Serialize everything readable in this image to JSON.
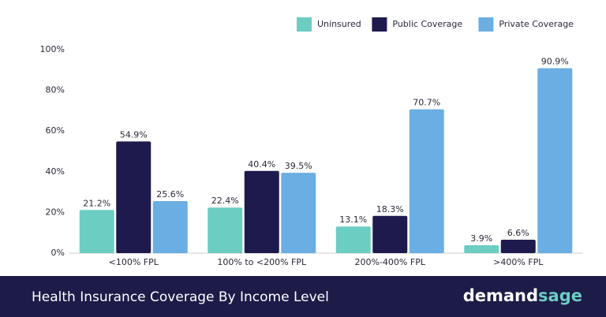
{
  "chart_data": {
    "type": "bar",
    "title": "Health Insurance Coverage By Income Level",
    "logo": [
      "demand",
      "sage"
    ],
    "categories": [
      "<100% FPL",
      "100% to <200% FPL",
      "200%-400% FPL",
      ">400% FPL"
    ],
    "series": [
      {
        "name": "Uninsured",
        "color": "#6ccdc3",
        "values": [
          21.2,
          22.4,
          13.1,
          3.9
        ],
        "value_labels": [
          "21.2%",
          "22.4%",
          "13.1%",
          "3.9%"
        ]
      },
      {
        "name": "Public Coverage",
        "color": "#1e1a4d",
        "values": [
          54.9,
          40.4,
          18.3,
          6.6
        ],
        "value_labels": [
          "54.9%",
          "40.4%",
          "18.3%",
          "6.6%"
        ]
      },
      {
        "name": "Private Coverage",
        "color": "#6aaee3",
        "values": [
          25.6,
          39.5,
          70.7,
          90.9
        ],
        "value_labels": [
          "25.6%",
          "39.5%",
          "70.7%",
          "90.9%"
        ]
      }
    ],
    "ylim": [
      0,
      100
    ],
    "yticks": [
      {
        "value": 0,
        "label": "0%"
      },
      {
        "value": 20,
        "label": "20%"
      },
      {
        "value": 40,
        "label": "40%"
      },
      {
        "value": 60,
        "label": "60%"
      },
      {
        "value": 80,
        "label": "80%"
      },
      {
        "value": 100,
        "label": "100%"
      }
    ],
    "grid": false,
    "legend": "top-right"
  }
}
